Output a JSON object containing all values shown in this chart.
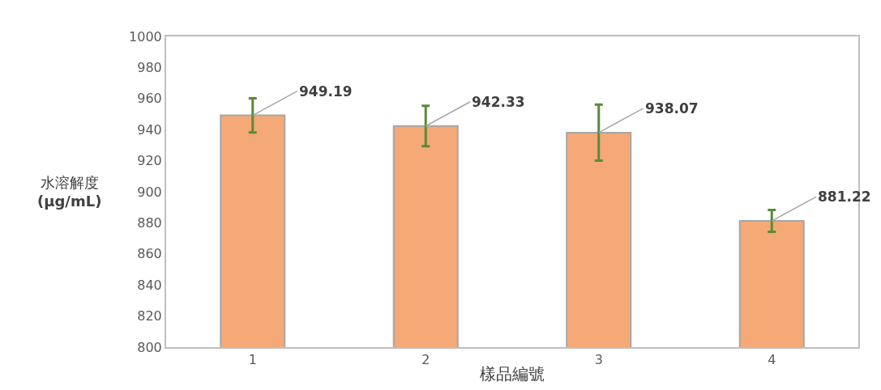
{
  "chart_data": {
    "type": "bar",
    "categories": [
      "1",
      "2",
      "3",
      "4"
    ],
    "values": [
      949.19,
      942.33,
      938.07,
      881.22
    ],
    "errors": [
      11,
      13,
      18,
      7
    ],
    "color": "#f4a976",
    "xlabel": "樣品編號",
    "ylabel": "水溶解度\n(µg/mL)",
    "ylim": [
      800,
      1000
    ],
    "yticks": [
      800,
      820,
      840,
      860,
      880,
      900,
      920,
      940,
      960,
      980,
      1000
    ],
    "data_labels": true
  }
}
